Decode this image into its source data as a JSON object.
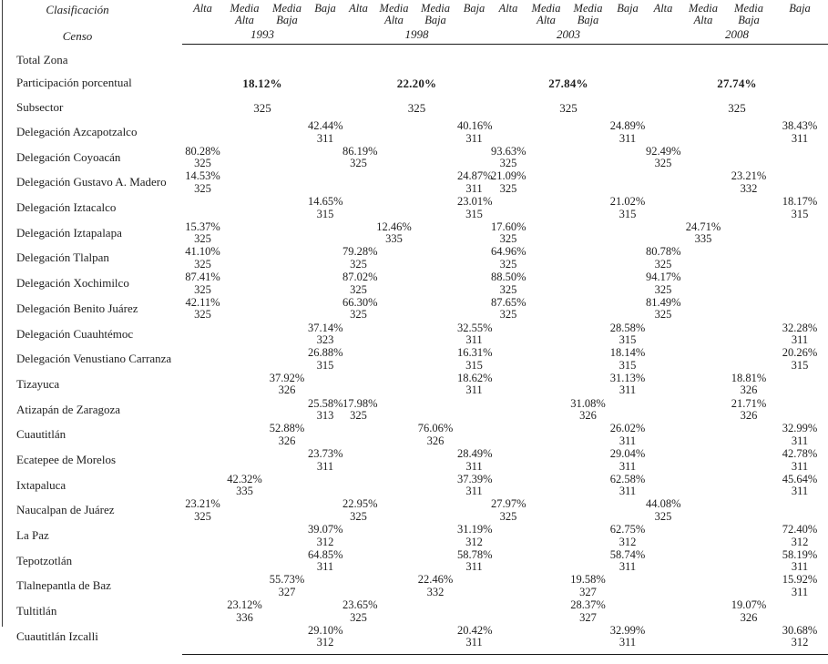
{
  "page": {
    "background": "#ffffff",
    "text_color": "#1e1e1e",
    "rule_color": "#1a1a1a"
  },
  "header": {
    "corner_top": "Clasificación",
    "corner_bottom": "Censo",
    "class_columns": [
      [
        "Alta",
        ""
      ],
      [
        "Media",
        "Alta"
      ],
      [
        "Media",
        "Baja"
      ],
      [
        "Baja",
        ""
      ]
    ],
    "years": [
      "1993",
      "1998",
      "2003",
      "2008"
    ]
  },
  "summary_rows": [
    {
      "label": "Total Zona",
      "bold": false,
      "values": [
        "",
        "",
        "",
        ""
      ]
    },
    {
      "label": "Participación porcentual",
      "bold": true,
      "values": [
        "18.12%",
        "22.20%",
        "27.84%",
        "27.74%"
      ]
    },
    {
      "label": "Subsector",
      "bold": false,
      "values": [
        "325",
        "325",
        "325",
        "325"
      ]
    }
  ],
  "rows": [
    {
      "label": "Delegación Azcapotzalco",
      "cells": [
        {
          "year": "1993",
          "class": "Baja",
          "y": 0,
          "c": 3,
          "pct": "42.44%",
          "sub": "311"
        },
        {
          "year": "1998",
          "class": "Baja",
          "y": 1,
          "c": 3,
          "pct": "40.16%",
          "sub": "311"
        },
        {
          "year": "2003",
          "class": "Baja",
          "y": 2,
          "c": 3,
          "pct": "24.89%",
          "sub": "311"
        },
        {
          "year": "2008",
          "class": "Baja",
          "y": 3,
          "c": 3,
          "pct": "38.43%",
          "sub": "311"
        }
      ]
    },
    {
      "label": "Delegación Coyoacán",
      "cells": [
        {
          "year": "1993",
          "class": "Alta",
          "y": 0,
          "c": 0,
          "pct": "80.28%",
          "sub": "325"
        },
        {
          "year": "1998",
          "class": "Alta",
          "y": 1,
          "c": 0,
          "pct": "86.19%",
          "sub": "325"
        },
        {
          "year": "2003",
          "class": "Alta",
          "y": 2,
          "c": 0,
          "pct": "93.63%",
          "sub": "325"
        },
        {
          "year": "2008",
          "class": "Alta",
          "y": 3,
          "c": 0,
          "pct": "92.49%",
          "sub": "325"
        }
      ]
    },
    {
      "label": "Delegación Gustavo A. Madero",
      "cells": [
        {
          "year": "1993",
          "class": "Alta",
          "y": 0,
          "c": 0,
          "pct": "14.53%",
          "sub": "325"
        },
        {
          "year": "1998",
          "class": "Baja",
          "y": 1,
          "c": 3,
          "pct": "24.87%",
          "sub": "311"
        },
        {
          "year": "2003",
          "class": "Alta",
          "y": 2,
          "c": 0,
          "pct": "21.09%",
          "sub": "325"
        },
        {
          "year": "2008",
          "class": "Media Baja",
          "y": 3,
          "c": 2,
          "pct": "23.21%",
          "sub": "332"
        }
      ]
    },
    {
      "label": "Delegación Iztacalco",
      "cells": [
        {
          "year": "1993",
          "class": "Baja",
          "y": 0,
          "c": 3,
          "pct": "14.65%",
          "sub": "315"
        },
        {
          "year": "1998",
          "class": "Baja",
          "y": 1,
          "c": 3,
          "pct": "23.01%",
          "sub": "315"
        },
        {
          "year": "2003",
          "class": "Baja",
          "y": 2,
          "c": 3,
          "pct": "21.02%",
          "sub": "315"
        },
        {
          "year": "2008",
          "class": "Baja",
          "y": 3,
          "c": 3,
          "pct": "18.17%",
          "sub": "315"
        }
      ]
    },
    {
      "label": "Delegación Iztapalapa",
      "cells": [
        {
          "year": "1993",
          "class": "Alta",
          "y": 0,
          "c": 0,
          "pct": "15.37%",
          "sub": "325"
        },
        {
          "year": "1998",
          "class": "Media Alta",
          "y": 1,
          "c": 1,
          "pct": "12.46%",
          "sub": "335"
        },
        {
          "year": "2003",
          "class": "Alta",
          "y": 2,
          "c": 0,
          "pct": "17.60%",
          "sub": "325"
        },
        {
          "year": "2008",
          "class": "Media Alta",
          "y": 3,
          "c": 1,
          "pct": "24.71%",
          "sub": "335"
        }
      ]
    },
    {
      "label": "Delegación Tlalpan",
      "cells": [
        {
          "year": "1993",
          "class": "Alta",
          "y": 0,
          "c": 0,
          "pct": "41.10%",
          "sub": "325"
        },
        {
          "year": "1998",
          "class": "Alta",
          "y": 1,
          "c": 0,
          "pct": "79.28%",
          "sub": "325"
        },
        {
          "year": "2003",
          "class": "Alta",
          "y": 2,
          "c": 0,
          "pct": "64.96%",
          "sub": "325"
        },
        {
          "year": "2008",
          "class": "Alta",
          "y": 3,
          "c": 0,
          "pct": "80.78%",
          "sub": "325"
        }
      ]
    },
    {
      "label": "Delegación Xochimilco",
      "cells": [
        {
          "year": "1993",
          "class": "Alta",
          "y": 0,
          "c": 0,
          "pct": "87.41%",
          "sub": "325"
        },
        {
          "year": "1998",
          "class": "Alta",
          "y": 1,
          "c": 0,
          "pct": "87.02%",
          "sub": "325"
        },
        {
          "year": "2003",
          "class": "Alta",
          "y": 2,
          "c": 0,
          "pct": "88.50%",
          "sub": "325"
        },
        {
          "year": "2008",
          "class": "Alta",
          "y": 3,
          "c": 0,
          "pct": "94.17%",
          "sub": "325"
        }
      ]
    },
    {
      "label": "Delegación Benito Juárez",
      "cells": [
        {
          "year": "1993",
          "class": "Alta",
          "y": 0,
          "c": 0,
          "pct": "42.11%",
          "sub": "325"
        },
        {
          "year": "1998",
          "class": "Alta",
          "y": 1,
          "c": 0,
          "pct": "66.30%",
          "sub": "325"
        },
        {
          "year": "2003",
          "class": "Alta",
          "y": 2,
          "c": 0,
          "pct": "87.65%",
          "sub": "325"
        },
        {
          "year": "2008",
          "class": "Alta",
          "y": 3,
          "c": 0,
          "pct": "81.49%",
          "sub": "325"
        }
      ]
    },
    {
      "label": "Delegación Cuauhtémoc",
      "cells": [
        {
          "year": "1993",
          "class": "Baja",
          "y": 0,
          "c": 3,
          "pct": "37.14%",
          "sub": "323"
        },
        {
          "year": "1998",
          "class": "Baja",
          "y": 1,
          "c": 3,
          "pct": "32.55%",
          "sub": "311"
        },
        {
          "year": "2003",
          "class": "Baja",
          "y": 2,
          "c": 3,
          "pct": "28.58%",
          "sub": "315"
        },
        {
          "year": "2008",
          "class": "Baja",
          "y": 3,
          "c": 3,
          "pct": "32.28%",
          "sub": "311"
        }
      ]
    },
    {
      "label": "Delegación Venustiano Carranza",
      "cells": [
        {
          "year": "1993",
          "class": "Baja",
          "y": 0,
          "c": 3,
          "pct": "26.88%",
          "sub": "315"
        },
        {
          "year": "1998",
          "class": "Baja",
          "y": 1,
          "c": 3,
          "pct": "16.31%",
          "sub": "315"
        },
        {
          "year": "2003",
          "class": "Baja",
          "y": 2,
          "c": 3,
          "pct": "18.14%",
          "sub": "315"
        },
        {
          "year": "2008",
          "class": "Baja",
          "y": 3,
          "c": 3,
          "pct": "20.26%",
          "sub": "315"
        }
      ]
    },
    {
      "label": "Tizayuca",
      "cells": [
        {
          "year": "1993",
          "class": "Media Baja",
          "y": 0,
          "c": 2,
          "pct": "37.92%",
          "sub": "326"
        },
        {
          "year": "1998",
          "class": "Baja",
          "y": 1,
          "c": 3,
          "pct": "18.62%",
          "sub": "311"
        },
        {
          "year": "2003",
          "class": "Baja",
          "y": 2,
          "c": 3,
          "pct": "31.13%",
          "sub": "311"
        },
        {
          "year": "2008",
          "class": "Media Baja",
          "y": 3,
          "c": 2,
          "pct": "18.81%",
          "sub": "326"
        }
      ]
    },
    {
      "label": "Atizapán de Zaragoza",
      "cells": [
        {
          "year": "1993",
          "class": "Baja",
          "y": 0,
          "c": 3,
          "pct": "25.58%",
          "sub": "313"
        },
        {
          "year": "1998",
          "class": "Alta",
          "y": 1,
          "c": 0,
          "pct": "17.98%",
          "sub": "325"
        },
        {
          "year": "2003",
          "class": "Media Baja",
          "y": 2,
          "c": 2,
          "pct": "31.08%",
          "sub": "326"
        },
        {
          "year": "2008",
          "class": "Media Baja",
          "y": 3,
          "c": 2,
          "pct": "21.71%",
          "sub": "326"
        }
      ]
    },
    {
      "label": "Cuautitlán",
      "cells": [
        {
          "year": "1993",
          "class": "Media Baja",
          "y": 0,
          "c": 2,
          "pct": "52.88%",
          "sub": "326"
        },
        {
          "year": "1998",
          "class": "Media Baja",
          "y": 1,
          "c": 2,
          "pct": "76.06%",
          "sub": "326"
        },
        {
          "year": "2003",
          "class": "Baja",
          "y": 2,
          "c": 3,
          "pct": "26.02%",
          "sub": "311"
        },
        {
          "year": "2008",
          "class": "Baja",
          "y": 3,
          "c": 3,
          "pct": "32.99%",
          "sub": "311"
        }
      ]
    },
    {
      "label": "Ecatepee de Morelos",
      "cells": [
        {
          "year": "1993",
          "class": "Baja",
          "y": 0,
          "c": 3,
          "pct": "23.73%",
          "sub": "311"
        },
        {
          "year": "1998",
          "class": "Baja",
          "y": 1,
          "c": 3,
          "pct": "28.49%",
          "sub": "311"
        },
        {
          "year": "2003",
          "class": "Baja",
          "y": 2,
          "c": 3,
          "pct": "29.04%",
          "sub": "311"
        },
        {
          "year": "2008",
          "class": "Baja",
          "y": 3,
          "c": 3,
          "pct": "42.78%",
          "sub": "311"
        }
      ]
    },
    {
      "label": "Ixtapaluca",
      "cells": [
        {
          "year": "1993",
          "class": "Media Alta",
          "y": 0,
          "c": 1,
          "pct": "42.32%",
          "sub": "335"
        },
        {
          "year": "1998",
          "class": "Baja",
          "y": 1,
          "c": 3,
          "pct": "37.39%",
          "sub": "311"
        },
        {
          "year": "2003",
          "class": "Baja",
          "y": 2,
          "c": 3,
          "pct": "62.58%",
          "sub": "311"
        },
        {
          "year": "2008",
          "class": "Baja",
          "y": 3,
          "c": 3,
          "pct": "45.64%",
          "sub": "311"
        }
      ]
    },
    {
      "label": "Naucalpan de Juárez",
      "cells": [
        {
          "year": "1993",
          "class": "Alta",
          "y": 0,
          "c": 0,
          "pct": "23.21%",
          "sub": "325"
        },
        {
          "year": "1998",
          "class": "Alta",
          "y": 1,
          "c": 0,
          "pct": "22.95%",
          "sub": "325"
        },
        {
          "year": "2003",
          "class": "Alta",
          "y": 2,
          "c": 0,
          "pct": "27.97%",
          "sub": "325"
        },
        {
          "year": "2008",
          "class": "Alta",
          "y": 3,
          "c": 0,
          "pct": "44.08%",
          "sub": "325"
        }
      ]
    },
    {
      "label": "La Paz",
      "cells": [
        {
          "year": "1993",
          "class": "Baja",
          "y": 0,
          "c": 3,
          "pct": "39.07%",
          "sub": "312"
        },
        {
          "year": "1998",
          "class": "Baja",
          "y": 1,
          "c": 3,
          "pct": "31.19%",
          "sub": "312"
        },
        {
          "year": "2003",
          "class": "Baja",
          "y": 2,
          "c": 3,
          "pct": "62.75%",
          "sub": "312"
        },
        {
          "year": "2008",
          "class": "Baja",
          "y": 3,
          "c": 3,
          "pct": "72.40%",
          "sub": "312"
        }
      ]
    },
    {
      "label": "Tepotzotlán",
      "cells": [
        {
          "year": "1993",
          "class": "Baja",
          "y": 0,
          "c": 3,
          "pct": "64.85%",
          "sub": "311"
        },
        {
          "year": "1998",
          "class": "Baja",
          "y": 1,
          "c": 3,
          "pct": "58.78%",
          "sub": "311"
        },
        {
          "year": "2003",
          "class": "Baja",
          "y": 2,
          "c": 3,
          "pct": "58.74%",
          "sub": "311"
        },
        {
          "year": "2008",
          "class": "Baja",
          "y": 3,
          "c": 3,
          "pct": "58.19%",
          "sub": "311"
        }
      ]
    },
    {
      "label": "Tlalnepantla de Baz",
      "cells": [
        {
          "year": "1993",
          "class": "Media Baja",
          "y": 0,
          "c": 2,
          "pct": "55.73%",
          "sub": "327"
        },
        {
          "year": "1998",
          "class": "Media Baja",
          "y": 1,
          "c": 2,
          "pct": "22.46%",
          "sub": "332"
        },
        {
          "year": "2003",
          "class": "Media Baja",
          "y": 2,
          "c": 2,
          "pct": "19.58%",
          "sub": "327"
        },
        {
          "year": "2008",
          "class": "Baja",
          "y": 3,
          "c": 3,
          "pct": "15.92%",
          "sub": "311"
        }
      ]
    },
    {
      "label": "Tultitlán",
      "cells": [
        {
          "year": "1993",
          "class": "Media Alta",
          "y": 0,
          "c": 1,
          "pct": "23.12%",
          "sub": "336"
        },
        {
          "year": "1998",
          "class": "Alta",
          "y": 1,
          "c": 0,
          "pct": "23.65%",
          "sub": "325"
        },
        {
          "year": "2003",
          "class": "Media Baja",
          "y": 2,
          "c": 2,
          "pct": "28.37%",
          "sub": "327"
        },
        {
          "year": "2008",
          "class": "Media Baja",
          "y": 3,
          "c": 2,
          "pct": "19.07%",
          "sub": "326"
        }
      ]
    },
    {
      "label": "Cuautitlán Izcalli",
      "cells": [
        {
          "year": "1993",
          "class": "Baja",
          "y": 0,
          "c": 3,
          "pct": "29.10%",
          "sub": "312"
        },
        {
          "year": "1998",
          "class": "Baja",
          "y": 1,
          "c": 3,
          "pct": "20.42%",
          "sub": "311"
        },
        {
          "year": "2003",
          "class": "Baja",
          "y": 2,
          "c": 3,
          "pct": "32.99%",
          "sub": "311"
        },
        {
          "year": "2008",
          "class": "Baja",
          "y": 3,
          "c": 3,
          "pct": "30.68%",
          "sub": "312"
        }
      ]
    }
  ]
}
